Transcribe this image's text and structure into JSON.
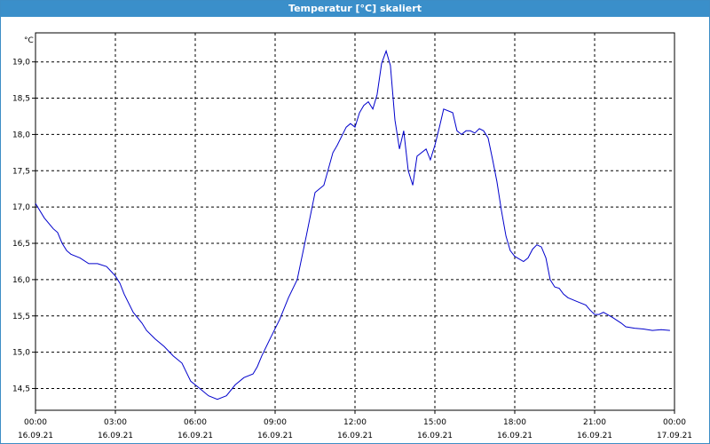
{
  "window": {
    "title": "Temperatur [°C] skaliert"
  },
  "chart_data": {
    "type": "line",
    "title": "Temperatur [°C] skaliert",
    "ylabel": "°C",
    "xlabel": "",
    "ylim": [
      14.2,
      19.4
    ],
    "xlim_hours": [
      0,
      24
    ],
    "y_ticks": [
      "19,0",
      "18,5",
      "18,0",
      "17,5",
      "17,0",
      "16,5",
      "16,0",
      "15,5",
      "15,0",
      "14,5"
    ],
    "y_tick_values": [
      19.0,
      18.5,
      18.0,
      17.5,
      17.0,
      16.5,
      16.0,
      15.5,
      15.0,
      14.5
    ],
    "x_ticks": [
      {
        "time": "00:00",
        "date": "16.09.21"
      },
      {
        "time": "03:00",
        "date": "16.09.21"
      },
      {
        "time": "06:00",
        "date": "16.09.21"
      },
      {
        "time": "09:00",
        "date": "16.09.21"
      },
      {
        "time": "12:00",
        "date": "16.09.21"
      },
      {
        "time": "15:00",
        "date": "16.09.21"
      },
      {
        "time": "18:00",
        "date": "16.09.21"
      },
      {
        "time": "21:00",
        "date": "16.09.21"
      },
      {
        "time": "00:00",
        "date": "17.09.21"
      }
    ],
    "grid": true,
    "line_color": "#0000cc",
    "series": [
      {
        "x": [
          0.0,
          0.33,
          0.67,
          0.83,
          1.0,
          1.17,
          1.33,
          1.67,
          2.0,
          2.17,
          2.33,
          2.67,
          3.0,
          3.17,
          3.33,
          3.67,
          4.0,
          4.17,
          4.5,
          4.83,
          5.17,
          5.5,
          5.83,
          6.17,
          6.5,
          6.83,
          7.17,
          7.5,
          7.83,
          8.17,
          8.33,
          8.5,
          8.83,
          9.17,
          9.5,
          9.83,
          10.17,
          10.5,
          10.83,
          11.17,
          11.33,
          11.67,
          11.83,
          12.0,
          12.17,
          12.33,
          12.5,
          12.67,
          12.83,
          13.0,
          13.17,
          13.33,
          13.5,
          13.67,
          13.83,
          14.0,
          14.17,
          14.33,
          14.67,
          14.83,
          15.0,
          15.17,
          15.33,
          15.67,
          15.83,
          16.0,
          16.17,
          16.33,
          16.5,
          16.67,
          16.83,
          17.0,
          17.17,
          17.33,
          17.5,
          17.67,
          17.83,
          18.0,
          18.33,
          18.5,
          18.67,
          18.83,
          19.0,
          19.17,
          19.33,
          19.5,
          19.67,
          19.83,
          20.0,
          20.33,
          20.67,
          20.83,
          21.0,
          21.17,
          21.33,
          21.67,
          22.0,
          22.17,
          22.5,
          22.83,
          23.17,
          23.5,
          23.83
        ],
        "y": [
          17.05,
          16.85,
          16.7,
          16.65,
          16.5,
          16.4,
          16.35,
          16.3,
          16.22,
          16.22,
          16.22,
          16.18,
          16.05,
          15.95,
          15.8,
          15.55,
          15.4,
          15.3,
          15.18,
          15.08,
          14.95,
          14.85,
          14.6,
          14.5,
          14.4,
          14.35,
          14.4,
          14.55,
          14.65,
          14.7,
          14.8,
          14.95,
          15.2,
          15.45,
          15.75,
          16.0,
          16.6,
          17.2,
          17.3,
          17.75,
          17.85,
          18.1,
          18.15,
          18.1,
          18.3,
          18.4,
          18.45,
          18.35,
          18.55,
          18.98,
          19.15,
          18.95,
          18.2,
          17.8,
          18.05,
          17.5,
          17.3,
          17.7,
          17.8,
          17.65,
          17.85,
          18.1,
          18.35,
          18.3,
          18.05,
          18.0,
          18.05,
          18.05,
          18.02,
          18.08,
          18.05,
          17.95,
          17.65,
          17.35,
          16.95,
          16.6,
          16.4,
          16.32,
          16.25,
          16.3,
          16.42,
          16.48,
          16.45,
          16.3,
          16.0,
          15.9,
          15.88,
          15.8,
          15.75,
          15.7,
          15.65,
          15.58,
          15.52,
          15.52,
          15.55,
          15.48,
          15.4,
          15.35,
          15.33,
          15.32,
          15.3,
          15.31,
          15.3
        ]
      }
    ]
  }
}
